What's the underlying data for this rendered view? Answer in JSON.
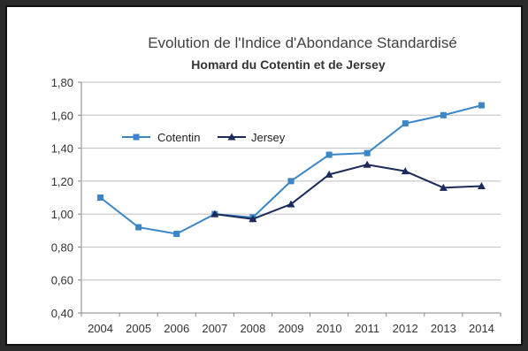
{
  "chart_data": {
    "type": "line",
    "title": "Evolution de l'Indice d'Abondance Standardisé",
    "subtitle": "Homard du Cotentin et de Jersey",
    "xlabel": "",
    "ylabel": "",
    "x": [
      "2004",
      "2005",
      "2006",
      "2007",
      "2008",
      "2009",
      "2010",
      "2011",
      "2012",
      "2013",
      "2014"
    ],
    "y_ticks": [
      "0,40",
      "0,60",
      "0,80",
      "1,00",
      "1,20",
      "1,40",
      "1,60",
      "1,80"
    ],
    "y_tick_values": [
      0.4,
      0.6,
      0.8,
      1.0,
      1.2,
      1.4,
      1.6,
      1.8
    ],
    "ylim": [
      0.4,
      1.8
    ],
    "grid": "horizontal",
    "legend_position": "top-left",
    "series": [
      {
        "name": "Cotentin",
        "color": "#3a86c8",
        "marker": "square",
        "values": [
          1.1,
          0.92,
          0.88,
          1.0,
          0.98,
          1.2,
          1.36,
          1.37,
          1.55,
          1.6,
          1.66
        ]
      },
      {
        "name": "Jersey",
        "color": "#1c2a5c",
        "marker": "triangle",
        "values": [
          null,
          null,
          null,
          1.0,
          0.97,
          1.06,
          1.24,
          1.3,
          1.26,
          1.16,
          1.17
        ]
      }
    ]
  }
}
